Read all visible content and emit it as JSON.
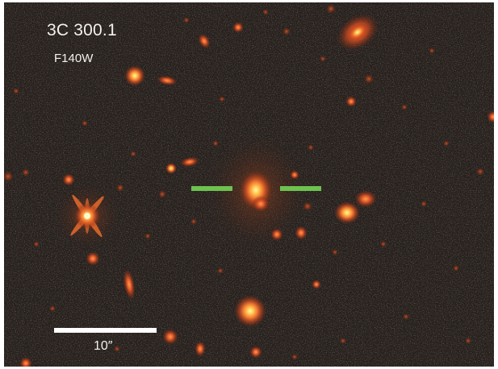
{
  "annotations": {
    "target_name": "3C 300.1",
    "filter_name": "F140W",
    "scale_label": "10″"
  },
  "colors": {
    "background": "#27211e",
    "source_core": "#fff2a8",
    "source_halo": "#e0552a",
    "marker": "#6ec24f",
    "scale_bar": "#ffffff",
    "text": "#f4f1ee"
  }
}
